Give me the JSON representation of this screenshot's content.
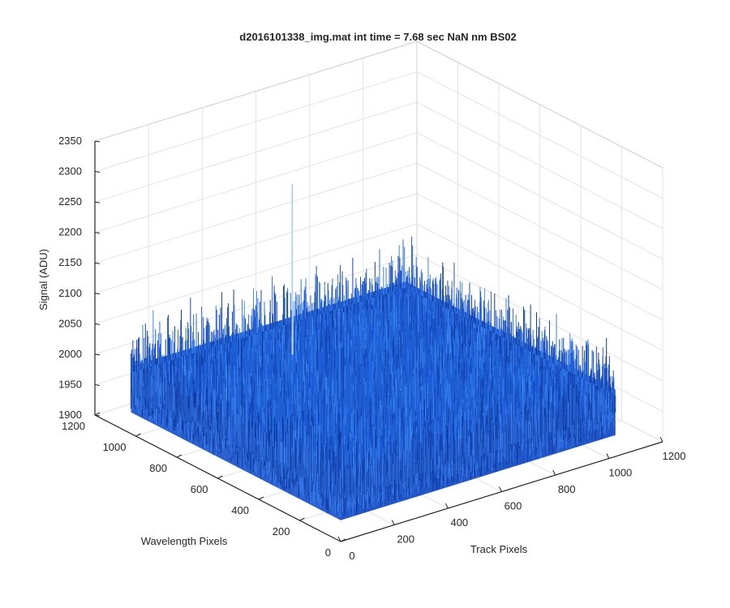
{
  "chart_data": {
    "type": "surface",
    "title": "d2016101338_img.mat int time = 7.68 sec  NaN nm BS02",
    "xlabel": "Track Pixels",
    "ylabel": "Wavelength Pixels",
    "zlabel": "Signal (ADU)",
    "xlim": [
      0,
      1200
    ],
    "ylim": [
      0,
      1200
    ],
    "zlim": [
      1900,
      2350
    ],
    "x_ticks": [
      0,
      200,
      400,
      600,
      800,
      1000,
      1200
    ],
    "y_ticks": [
      0,
      200,
      400,
      600,
      800,
      1000,
      1200
    ],
    "z_ticks": [
      1900,
      1950,
      2000,
      2050,
      2100,
      2150,
      2200,
      2250,
      2300,
      2350
    ],
    "x_extent": [
      0,
      1024
    ],
    "y_extent": [
      0,
      1024
    ],
    "signal_baseline": 2010,
    "signal_noise_range": [
      1935,
      2110
    ],
    "peak": {
      "x": 430,
      "y": 800,
      "value": 2290
    },
    "grid": true,
    "colormap": "blue"
  }
}
